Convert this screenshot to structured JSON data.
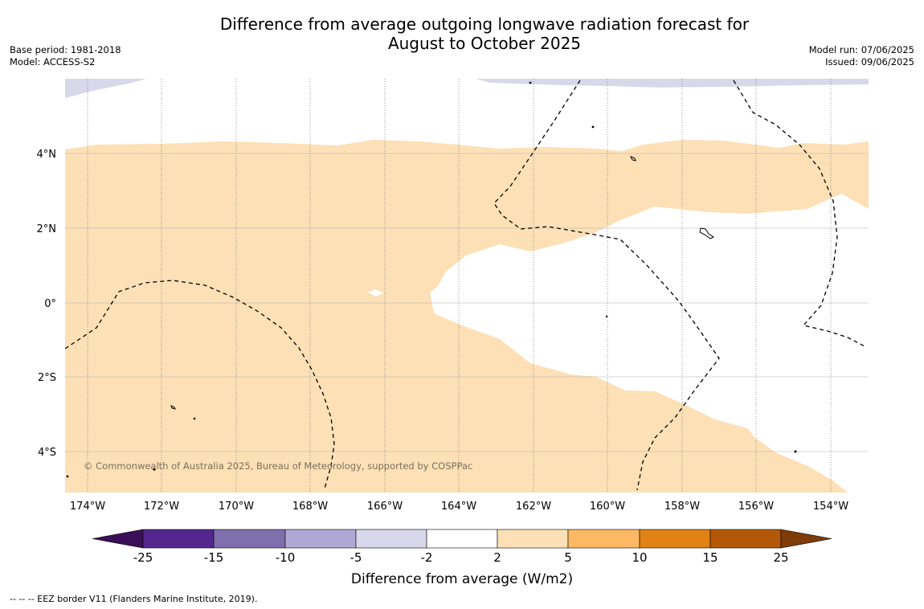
{
  "title_line1": "Difference from average outgoing longwave radiation forecast for",
  "title_line2": "August to October 2025",
  "meta_left": {
    "base_period": "Base period: 1981-2018",
    "model": "Model: ACCESS-S2"
  },
  "meta_right": {
    "model_run": "Model run: 07/06/2025",
    "issued": "Issued: 09/06/2025"
  },
  "map": {
    "lon_labels": [
      "174°W",
      "172°W",
      "170°W",
      "168°W",
      "166°W",
      "164°W",
      "162°W",
      "160°W",
      "158°W",
      "156°W",
      "154°W"
    ],
    "lat_labels": [
      "4°N",
      "2°N",
      "0°",
      "2°S",
      "4°S"
    ],
    "copyright": "© Commonwealth of Australia 2025, Bureau of Meteorology, supported by COSPPac",
    "colors": {
      "positive_2_5": "#fde0b6",
      "negative_2_5": "#d8d8eb",
      "zero": "#ffffff"
    }
  },
  "colorbar": {
    "label": "Difference from average (W/m2)",
    "ticks": [
      "-25",
      "-15",
      "-10",
      "-5",
      "-2",
      "2",
      "5",
      "10",
      "15",
      "25"
    ],
    "colors": [
      "#3b0f57",
      "#54278f",
      "#7f6fad",
      "#b0a8d4",
      "#d8d8eb",
      "#ffffff",
      "#fde0b6",
      "#fdb863",
      "#e08214",
      "#b35806",
      "#7f3b08"
    ]
  },
  "footer": "--  --  -- EEZ border V11 (Flanders Marine Institute, 2019)."
}
